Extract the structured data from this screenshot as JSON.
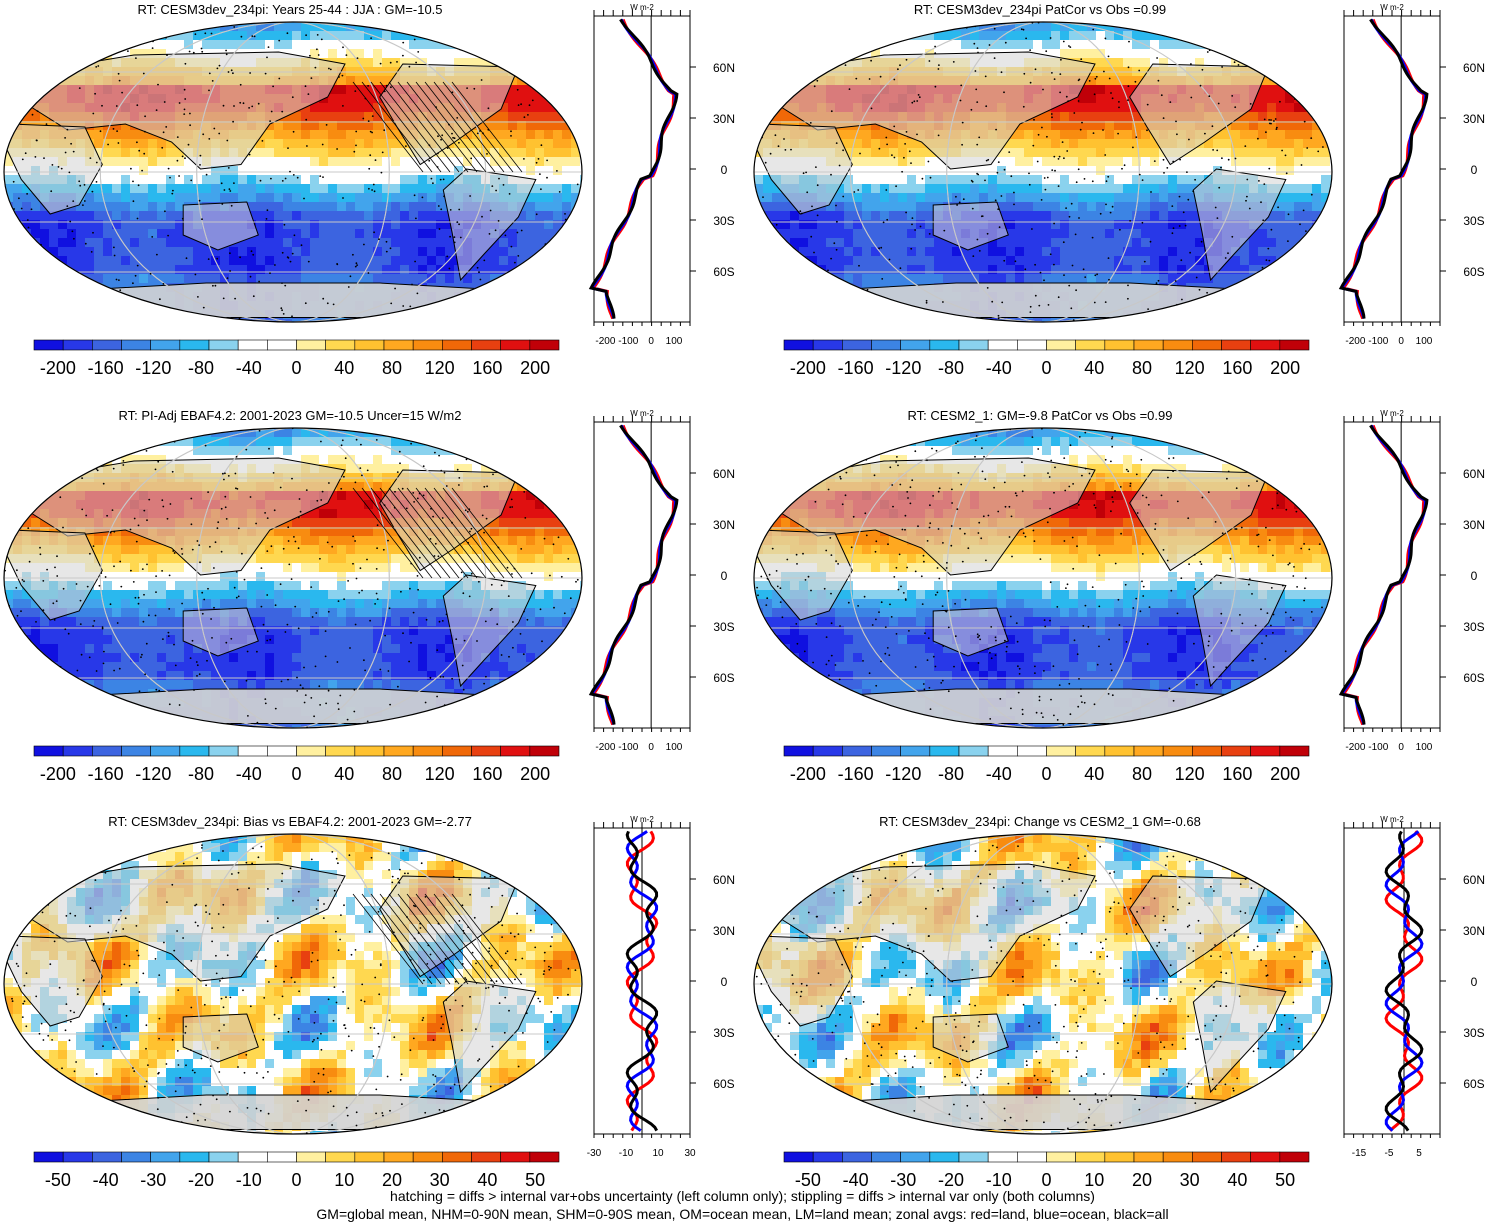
{
  "chart_data": [
    {
      "type": "heatmap",
      "title": "RT: CESM3dev_234pi: Years 25-44 : JJA : GM=-10.5",
      "colorbar": {
        "ticks": [
          "-200",
          "-160",
          "-120",
          "-80",
          "-40",
          "0",
          "40",
          "80",
          "120",
          "160",
          "200"
        ],
        "range": [
          -220,
          220
        ]
      },
      "profile": {
        "unit": "W m-2",
        "xticks": [
          "-200",
          "-100",
          "0",
          "100"
        ],
        "xlim": [
          -250,
          170
        ],
        "lat_labels": [
          "60N",
          "30N",
          "0",
          "30S",
          "60S"
        ],
        "lat_values": [
          60,
          30,
          0,
          -30,
          -60
        ]
      },
      "hatching": true
    },
    {
      "type": "heatmap",
      "title": "RT: CESM3dev_234pi PatCor vs Obs =0.99",
      "colorbar": {
        "ticks": [
          "-200",
          "-160",
          "-120",
          "-80",
          "-40",
          "0",
          "40",
          "80",
          "120",
          "160",
          "200"
        ],
        "range": [
          -220,
          220
        ]
      },
      "profile": {
        "unit": "W m-2",
        "xticks": [
          "-200",
          "-100",
          "0",
          "100"
        ],
        "xlim": [
          -250,
          170
        ],
        "lat_labels": [
          "60N",
          "30N",
          "0",
          "30S",
          "60S"
        ],
        "lat_values": [
          60,
          30,
          0,
          -30,
          -60
        ]
      },
      "hatching": false
    },
    {
      "type": "heatmap",
      "title": "RT: PI-Adj EBAF4.2: 2001-2023 GM=-10.5 Uncer=15 W/m2",
      "colorbar": {
        "ticks": [
          "-200",
          "-160",
          "-120",
          "-80",
          "-40",
          "0",
          "40",
          "80",
          "120",
          "160",
          "200"
        ],
        "range": [
          -220,
          220
        ]
      },
      "profile": {
        "unit": "W m-2",
        "xticks": [
          "-200",
          "-100",
          "0",
          "100"
        ],
        "xlim": [
          -250,
          170
        ],
        "lat_labels": [
          "60N",
          "30N",
          "0",
          "30S",
          "60S"
        ],
        "lat_values": [
          60,
          30,
          0,
          -30,
          -60
        ]
      },
      "hatching": true
    },
    {
      "type": "heatmap",
      "title": "RT: CESM2_1: GM=-9.8 PatCor vs Obs =0.99",
      "colorbar": {
        "ticks": [
          "-200",
          "-160",
          "-120",
          "-80",
          "-40",
          "0",
          "40",
          "80",
          "120",
          "160",
          "200"
        ],
        "range": [
          -220,
          220
        ]
      },
      "profile": {
        "unit": "W m-2",
        "xticks": [
          "-200",
          "-100",
          "0",
          "100"
        ],
        "xlim": [
          -250,
          170
        ],
        "lat_labels": [
          "60N",
          "30N",
          "0",
          "30S",
          "60S"
        ],
        "lat_values": [
          60,
          30,
          0,
          -30,
          -60
        ]
      },
      "hatching": false
    },
    {
      "type": "heatmap",
      "title": "RT: CESM3dev_234pi: Bias vs EBAF4.2: 2001-2023 GM=-2.77",
      "colorbar": {
        "ticks": [
          "-50",
          "-40",
          "-30",
          "-20",
          "-10",
          "0",
          "10",
          "20",
          "30",
          "40",
          "50"
        ],
        "range": [
          -55,
          55
        ]
      },
      "profile": {
        "unit": "W m-2",
        "xticks": [
          "-30",
          "-10",
          "10",
          "30"
        ],
        "xlim": [
          -30,
          30
        ],
        "lat_labels": [
          "60N",
          "30N",
          "0",
          "30S",
          "60S"
        ],
        "lat_values": [
          60,
          30,
          0,
          -30,
          -60
        ]
      },
      "hatching": true
    },
    {
      "type": "heatmap",
      "title": "RT: CESM3dev_234pi: Change vs CESM2_1 GM=-0.68",
      "colorbar": {
        "ticks": [
          "-50",
          "-40",
          "-30",
          "-20",
          "-10",
          "0",
          "10",
          "20",
          "30",
          "40",
          "50"
        ],
        "range": [
          -55,
          55
        ]
      },
      "profile": {
        "unit": "W m-2",
        "xticks": [
          "-15",
          "-5",
          "5"
        ],
        "xlim": [
          -20,
          12
        ],
        "lat_labels": [
          "60N",
          "30N",
          "0",
          "30S",
          "60S"
        ],
        "lat_values": [
          60,
          30,
          0,
          -30,
          -60
        ]
      },
      "hatching": false
    }
  ],
  "colors": {
    "scale": [
      "#1010e0",
      "#2838e8",
      "#3c64e0",
      "#3c84e4",
      "#42a4ec",
      "#2ab8ee",
      "#8ad2ee",
      "#ffffff",
      "#ffffff",
      "#fff0a0",
      "#ffd850",
      "#ffc230",
      "#ffa820",
      "#f88c10",
      "#f06808",
      "#e84010",
      "#e01010",
      "#c00008"
    ],
    "land": "#d3d3d3",
    "land_line": "red",
    "ocean_line": "blue",
    "all_line": "black"
  },
  "footer": {
    "line1": "hatching = diffs > internal var+obs uncertainty (left column only); stippling = diffs > internal var only (both columns)",
    "line2": "GM=global mean, NHM=0-90N mean, SHM=0-90S mean, OM=ocean mean, LM=land mean; zonal avgs: red=land, blue=ocean, black=all"
  }
}
